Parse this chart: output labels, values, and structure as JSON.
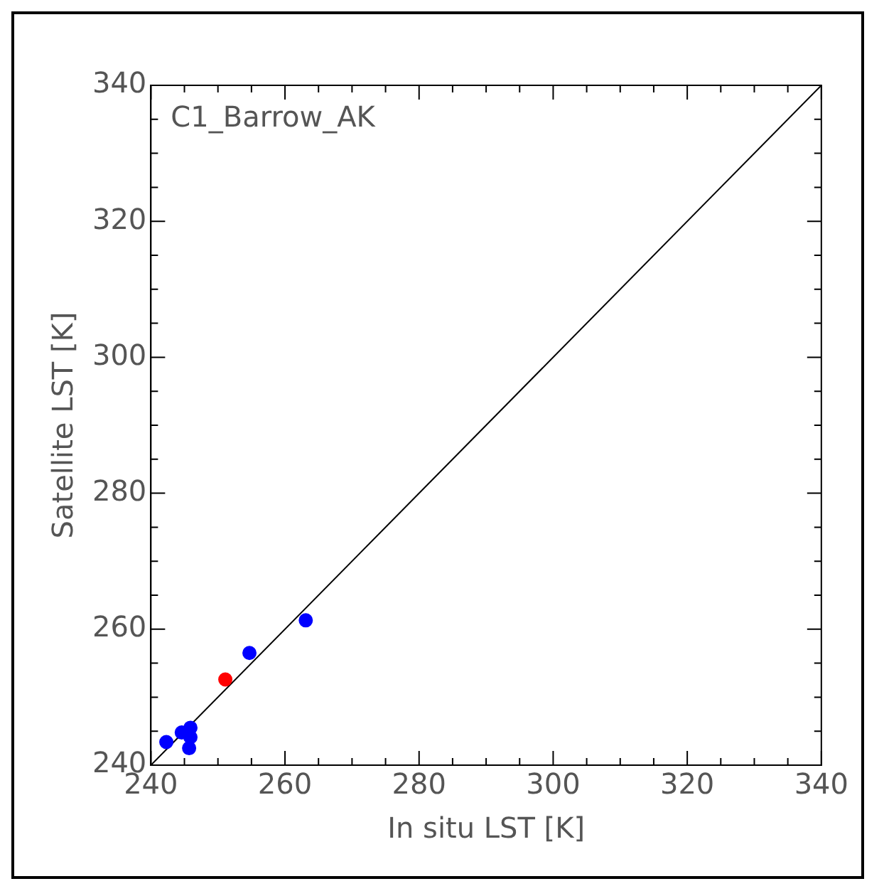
{
  "chart_data": {
    "type": "scatter",
    "xlabel": "In situ LST [K]",
    "ylabel": "Satellite LST [K]",
    "annotations": [
      "C1_Barrow_AK"
    ],
    "xlim": [
      240,
      340
    ],
    "ylim": [
      240,
      340
    ],
    "xticks": [
      240,
      260,
      280,
      300,
      320,
      340
    ],
    "yticks": [
      240,
      260,
      280,
      300,
      320,
      340
    ],
    "grid": false,
    "legend": false,
    "marker": "circle",
    "series": [
      {
        "color": "#0000ff",
        "x": [
          242.3,
          244.6,
          245.9,
          245.9,
          245.7,
          254.7,
          263.1
        ],
        "values": [
          243.4,
          244.8,
          245.5,
          244.1,
          242.5,
          256.5,
          261.3
        ]
      },
      {
        "color": "#ff0000",
        "x": [
          251.1
        ],
        "values": [
          252.6
        ]
      },
      {
        "type": "line",
        "color": "#000000",
        "x": [
          240,
          340
        ],
        "values": [
          240,
          340
        ],
        "marker": "none"
      }
    ]
  }
}
